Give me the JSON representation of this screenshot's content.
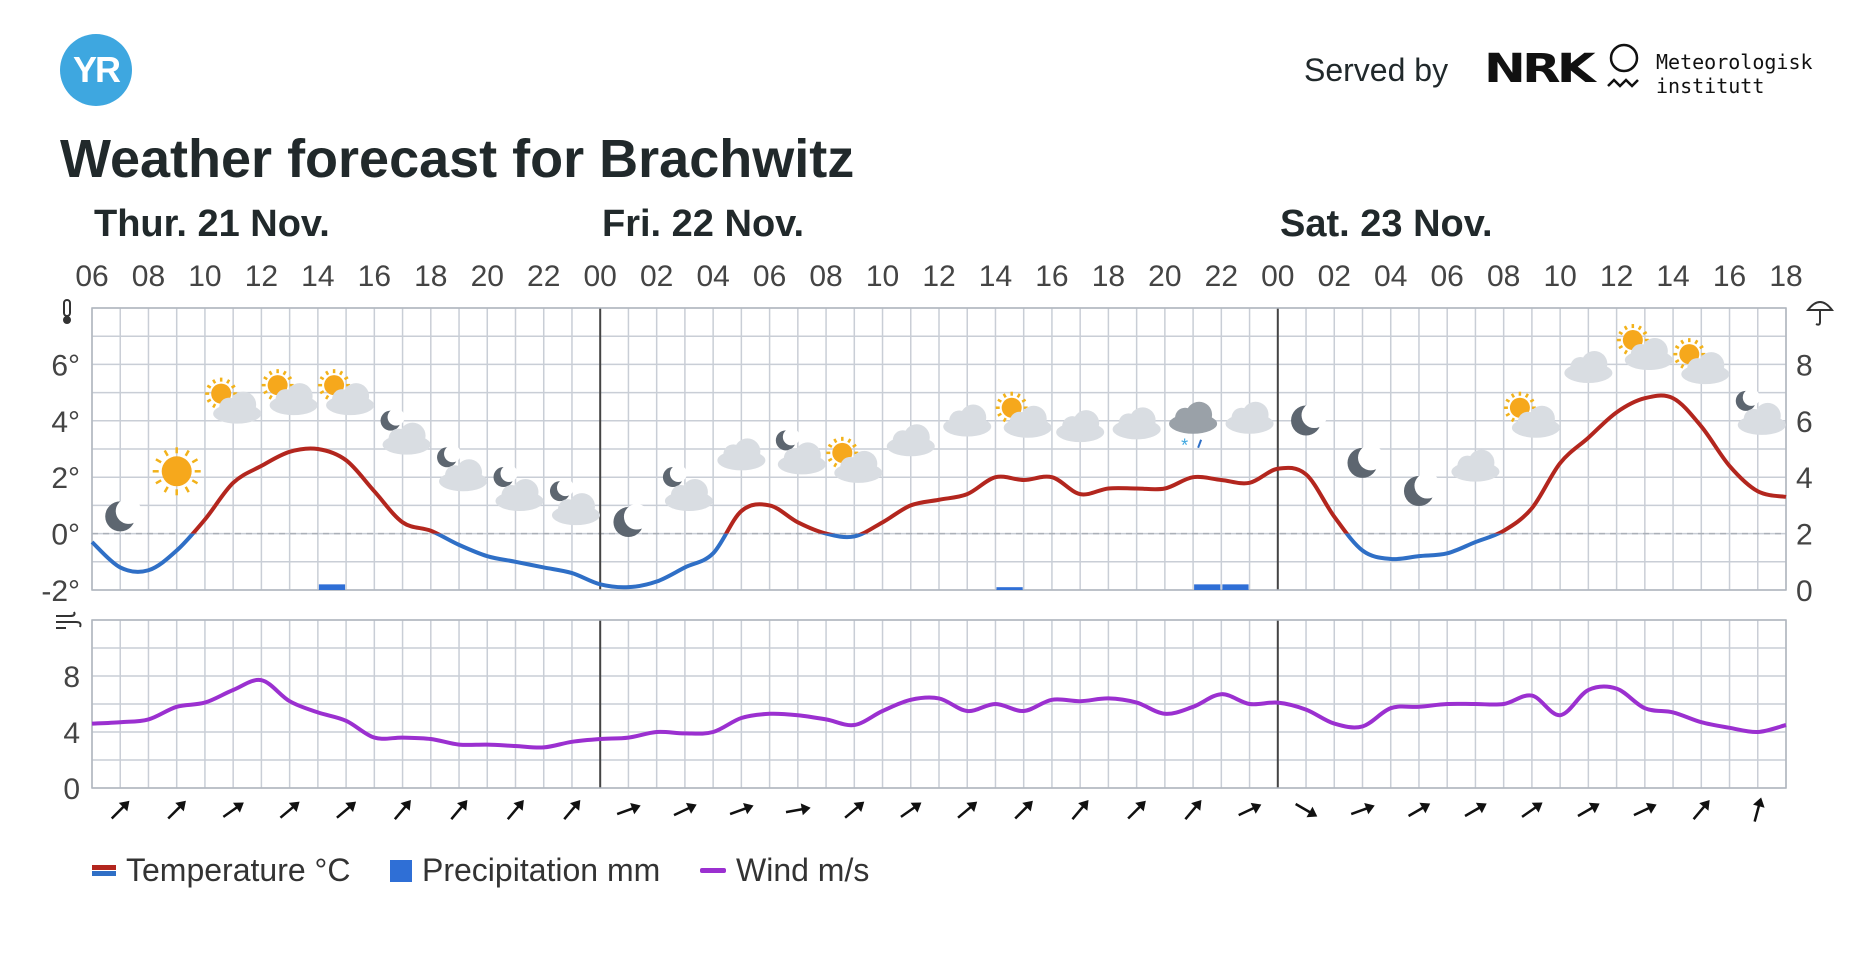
{
  "header": {
    "logo_text": "YR",
    "served_by": "Served by",
    "nrk_logo_text": "NRK",
    "met_line1": "Meteorologisk",
    "met_line2": "institutt"
  },
  "title": "Weather forecast for Brachwitz",
  "legend": {
    "temperature": "Temperature °C",
    "precipitation": "Precipitation mm",
    "wind": "Wind m/s"
  },
  "colors": {
    "temp_warm": "#b3261e",
    "temp_cold": "#2f6fc6",
    "precip": "#2f6fd6",
    "wind": "#9b30d0",
    "grid": "#c9ced6",
    "day_divider": "#444444",
    "logo": "#3ea7e0"
  },
  "chart_data": [
    {
      "type": "line",
      "days": [
        {
          "label": "Thur. 21 Nov.",
          "start_hour": 6
        },
        {
          "label": "Fri. 22 Nov.",
          "start_hour": 24
        },
        {
          "label": "Sat. 23 Nov.",
          "start_hour": 48
        }
      ],
      "hour_ticks": [
        "06",
        "08",
        "10",
        "12",
        "14",
        "16",
        "18",
        "20",
        "22",
        "00",
        "02",
        "04",
        "06",
        "08",
        "10",
        "12",
        "14",
        "16",
        "18",
        "20",
        "22",
        "00",
        "02",
        "04",
        "06",
        "08",
        "10",
        "12",
        "14",
        "16",
        "18"
      ],
      "x_range_hours": [
        6,
        66
      ],
      "temperature": {
        "name": "Temperature °C",
        "ylim": [
          -2,
          8
        ],
        "y_ticks": [
          "-2°",
          "0°",
          "2°",
          "4°",
          "6°"
        ],
        "hours": [
          6,
          7,
          8,
          9,
          10,
          11,
          12,
          13,
          14,
          15,
          16,
          17,
          18,
          19,
          20,
          21,
          22,
          23,
          24,
          25,
          26,
          27,
          28,
          29,
          30,
          31,
          32,
          33,
          34,
          35,
          36,
          37,
          38,
          39,
          40,
          41,
          42,
          43,
          44,
          45,
          46,
          47,
          48,
          49,
          50,
          51,
          52,
          53,
          54,
          55,
          56,
          57,
          58,
          59,
          60,
          61,
          62,
          63,
          64,
          65,
          66
        ],
        "values": [
          -0.3,
          -1.2,
          -1.3,
          -0.6,
          0.5,
          1.8,
          2.4,
          2.9,
          3.0,
          2.6,
          1.5,
          0.4,
          0.1,
          -0.4,
          -0.8,
          -1.0,
          -1.2,
          -1.4,
          -1.8,
          -1.9,
          -1.7,
          -1.2,
          -0.7,
          0.8,
          1.0,
          0.4,
          0.0,
          -0.1,
          0.4,
          1.0,
          1.2,
          1.4,
          2.0,
          1.9,
          2.0,
          1.4,
          1.6,
          1.6,
          1.6,
          2.0,
          1.9,
          1.8,
          2.3,
          2.1,
          0.6,
          -0.6,
          -0.9,
          -0.8,
          -0.7,
          -0.3,
          0.1,
          0.9,
          2.5,
          3.4,
          4.3,
          4.8,
          4.8,
          3.8,
          2.4,
          1.5,
          1.3
        ]
      },
      "precipitation": {
        "name": "Precipitation mm",
        "ylim": [
          0,
          10
        ],
        "y_ticks": [
          "0",
          "2",
          "4",
          "6",
          "8"
        ],
        "bars": [
          {
            "hour": 14,
            "value": 0.2
          },
          {
            "hour": 38,
            "value": 0.1
          },
          {
            "hour": 45,
            "value": 0.2
          },
          {
            "hour": 46,
            "value": 0.2
          }
        ]
      },
      "weather_icons": [
        {
          "hour": 7,
          "icon": "moon-icon",
          "temp": -0.1
        },
        {
          "hour": 9,
          "icon": "sun-icon",
          "temp": 1.5
        },
        {
          "hour": 11,
          "icon": "partly-cloudy-day-icon",
          "temp": 3.9
        },
        {
          "hour": 13,
          "icon": "partly-cloudy-day-icon",
          "temp": 4.2
        },
        {
          "hour": 15,
          "icon": "partly-cloudy-day-icon",
          "temp": 4.2
        },
        {
          "hour": 17,
          "icon": "partly-cloudy-night-icon",
          "temp": 2.8
        },
        {
          "hour": 19,
          "icon": "partly-cloudy-night-icon",
          "temp": 1.5
        },
        {
          "hour": 21,
          "icon": "partly-cloudy-night-icon",
          "temp": 0.8
        },
        {
          "hour": 23,
          "icon": "partly-cloudy-night-icon",
          "temp": 0.3
        },
        {
          "hour": 25,
          "icon": "moon-icon",
          "temp": -0.3
        },
        {
          "hour": 27,
          "icon": "partly-cloudy-night-icon",
          "temp": 0.8
        },
        {
          "hour": 29,
          "icon": "cloud-icon",
          "temp": 2.1
        },
        {
          "hour": 31,
          "icon": "partly-cloudy-night-icon",
          "temp": 2.1
        },
        {
          "hour": 33,
          "icon": "partly-cloudy-day-icon",
          "temp": 1.8
        },
        {
          "hour": 35,
          "icon": "cloud-icon",
          "temp": 2.6
        },
        {
          "hour": 37,
          "icon": "cloud-icon",
          "temp": 3.3
        },
        {
          "hour": 39,
          "icon": "partly-cloudy-day-icon",
          "temp": 3.4
        },
        {
          "hour": 41,
          "icon": "cloud-icon",
          "temp": 3.1
        },
        {
          "hour": 43,
          "icon": "cloud-icon",
          "temp": 3.2
        },
        {
          "hour": 45,
          "icon": "sleet-cloud-icon",
          "temp": 3.4
        },
        {
          "hour": 47,
          "icon": "cloud-icon",
          "temp": 3.4
        },
        {
          "hour": 49,
          "icon": "moon-icon",
          "temp": 3.3
        },
        {
          "hour": 51,
          "icon": "moon-icon",
          "temp": 1.8
        },
        {
          "hour": 53,
          "icon": "moon-icon",
          "temp": 0.8
        },
        {
          "hour": 55,
          "icon": "cloud-icon",
          "temp": 1.7
        },
        {
          "hour": 57,
          "icon": "partly-cloudy-day-icon",
          "temp": 3.4
        },
        {
          "hour": 59,
          "icon": "cloud-icon",
          "temp": 5.2
        },
        {
          "hour": 61,
          "icon": "partly-cloudy-day-icon",
          "temp": 5.8
        },
        {
          "hour": 63,
          "icon": "partly-cloudy-day-icon",
          "temp": 5.3
        },
        {
          "hour": 65,
          "icon": "partly-cloudy-night-icon",
          "temp": 3.5
        }
      ],
      "axis_icons": {
        "temperature": "thermometer-icon",
        "precipitation": "umbrella-icon",
        "wind": "wind-icon"
      }
    },
    {
      "type": "line",
      "name": "Wind m/s",
      "ylim": [
        0,
        12
      ],
      "y_ticks": [
        "0",
        "4",
        "8"
      ],
      "hours": [
        6,
        7,
        8,
        9,
        10,
        11,
        12,
        13,
        14,
        15,
        16,
        17,
        18,
        19,
        20,
        21,
        22,
        23,
        24,
        25,
        26,
        27,
        28,
        29,
        30,
        31,
        32,
        33,
        34,
        35,
        36,
        37,
        38,
        39,
        40,
        41,
        42,
        43,
        44,
        45,
        46,
        47,
        48,
        49,
        50,
        51,
        52,
        53,
        54,
        55,
        56,
        57,
        58,
        59,
        60,
        61,
        62,
        63,
        64,
        65,
        66
      ],
      "values": [
        4.6,
        4.7,
        4.9,
        5.8,
        6.1,
        7.0,
        7.7,
        6.2,
        5.4,
        4.8,
        3.6,
        3.6,
        3.5,
        3.1,
        3.1,
        3.0,
        2.9,
        3.3,
        3.5,
        3.6,
        4.0,
        3.9,
        4.0,
        5.0,
        5.3,
        5.2,
        4.9,
        4.5,
        5.5,
        6.3,
        6.4,
        5.5,
        6.0,
        5.5,
        6.3,
        6.2,
        6.4,
        6.1,
        5.3,
        5.8,
        6.7,
        6.0,
        6.1,
        5.6,
        4.6,
        4.4,
        5.7,
        5.8,
        6.0,
        6.0,
        6.0,
        6.6,
        5.2,
        7.0,
        7.1,
        5.7,
        5.4,
        4.7,
        4.3,
        4.0,
        4.5
      ],
      "directions": [
        {
          "hour": 7,
          "deg": 45
        },
        {
          "hour": 9,
          "deg": 45
        },
        {
          "hour": 11,
          "deg": 55
        },
        {
          "hour": 13,
          "deg": 50
        },
        {
          "hour": 15,
          "deg": 50
        },
        {
          "hour": 17,
          "deg": 40
        },
        {
          "hour": 19,
          "deg": 40
        },
        {
          "hour": 21,
          "deg": 40
        },
        {
          "hour": 23,
          "deg": 40
        },
        {
          "hour": 25,
          "deg": 70
        },
        {
          "hour": 27,
          "deg": 65
        },
        {
          "hour": 29,
          "deg": 70
        },
        {
          "hour": 31,
          "deg": 80
        },
        {
          "hour": 33,
          "deg": 50
        },
        {
          "hour": 35,
          "deg": 55
        },
        {
          "hour": 37,
          "deg": 50
        },
        {
          "hour": 39,
          "deg": 45
        },
        {
          "hour": 41,
          "deg": 40
        },
        {
          "hour": 43,
          "deg": 45
        },
        {
          "hour": 45,
          "deg": 40
        },
        {
          "hour": 47,
          "deg": 65
        },
        {
          "hour": 49,
          "deg": 120
        },
        {
          "hour": 51,
          "deg": 70
        },
        {
          "hour": 53,
          "deg": 60
        },
        {
          "hour": 55,
          "deg": 60
        },
        {
          "hour": 57,
          "deg": 55
        },
        {
          "hour": 59,
          "deg": 60
        },
        {
          "hour": 61,
          "deg": 65
        },
        {
          "hour": 63,
          "deg": 40
        },
        {
          "hour": 65,
          "deg": 15
        }
      ]
    }
  ]
}
